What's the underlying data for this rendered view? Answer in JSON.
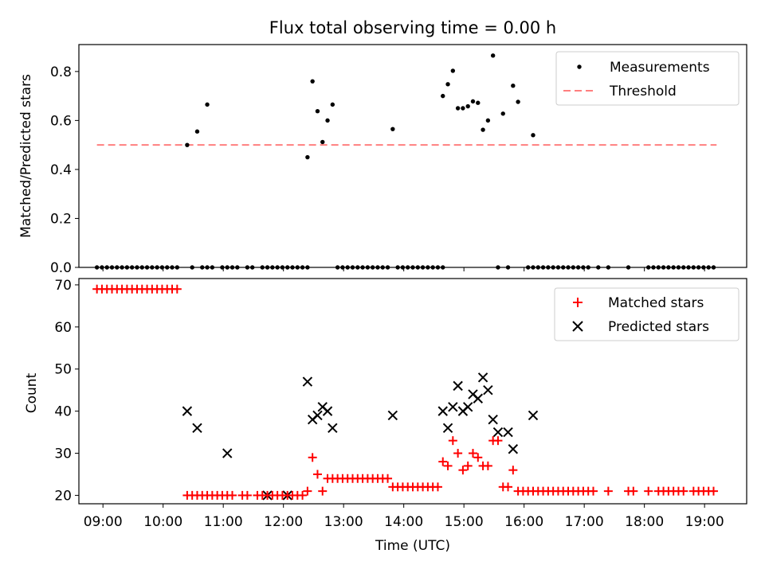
{
  "title": "Flux total observing time = 0.00 h",
  "chart_data": [
    {
      "type": "scatter",
      "ylabel": "Matched/Predicted stars",
      "xlim": [
        "08:36",
        "19:42"
      ],
      "ylim": [
        0,
        0.91
      ],
      "yticks": [
        0.0,
        0.2,
        0.4,
        0.6,
        0.8
      ],
      "ytick_labels": [
        "0.0",
        "0.2",
        "0.4",
        "0.6",
        "0.8"
      ],
      "legend_position": "top-right",
      "legend": [
        {
          "label": "Measurements",
          "marker": "dot",
          "color": "#000000"
        },
        {
          "label": "Threshold",
          "marker": "dashed-line",
          "color": "#ff7f7f"
        }
      ],
      "threshold": {
        "name": "Threshold",
        "value": 0.5,
        "x_range": [
          "08:54",
          "19:12"
        ],
        "color": "#ff7f7f"
      },
      "series": [
        {
          "name": "Measurements",
          "color": "#000000",
          "points": [
            [
              "08:54",
              0
            ],
            [
              "08:59",
              0
            ],
            [
              "09:04",
              0
            ],
            [
              "09:09",
              0
            ],
            [
              "09:14",
              0
            ],
            [
              "09:19",
              0
            ],
            [
              "09:24",
              0
            ],
            [
              "09:29",
              0
            ],
            [
              "09:34",
              0
            ],
            [
              "09:39",
              0
            ],
            [
              "09:44",
              0
            ],
            [
              "09:49",
              0
            ],
            [
              "09:54",
              0
            ],
            [
              "09:59",
              0
            ],
            [
              "10:04",
              0
            ],
            [
              "10:09",
              0
            ],
            [
              "10:14",
              0
            ],
            [
              "10:24",
              0.5
            ],
            [
              "10:34",
              0.555
            ],
            [
              "10:29",
              0
            ],
            [
              "10:39",
              0
            ],
            [
              "10:44",
              0
            ],
            [
              "10:49",
              0
            ],
            [
              "10:59",
              0
            ],
            [
              "11:04",
              0
            ],
            [
              "11:09",
              0
            ],
            [
              "11:14",
              0
            ],
            [
              "11:24",
              0
            ],
            [
              "11:29",
              0
            ],
            [
              "11:39",
              0
            ],
            [
              "11:44",
              0
            ],
            [
              "11:49",
              0
            ],
            [
              "11:54",
              0
            ],
            [
              "11:59",
              0
            ],
            [
              "12:04",
              0
            ],
            [
              "12:09",
              0
            ],
            [
              "12:14",
              0
            ],
            [
              "12:19",
              0
            ],
            [
              "12:24",
              0
            ],
            [
              "10:44",
              0.665
            ],
            [
              "12:24",
              0.45
            ],
            [
              "12:29",
              0.76
            ],
            [
              "12:34",
              0.638
            ],
            [
              "12:39",
              0.512
            ],
            [
              "12:44",
              0.6
            ],
            [
              "12:49",
              0.665
            ],
            [
              "12:54",
              0
            ],
            [
              "12:59",
              0
            ],
            [
              "13:04",
              0
            ],
            [
              "13:09",
              0
            ],
            [
              "13:14",
              0
            ],
            [
              "13:19",
              0
            ],
            [
              "13:24",
              0
            ],
            [
              "13:29",
              0
            ],
            [
              "13:34",
              0
            ],
            [
              "13:39",
              0
            ],
            [
              "13:44",
              0
            ],
            [
              "13:54",
              0
            ],
            [
              "13:59",
              0
            ],
            [
              "14:04",
              0
            ],
            [
              "14:09",
              0
            ],
            [
              "14:14",
              0
            ],
            [
              "14:19",
              0
            ],
            [
              "14:24",
              0
            ],
            [
              "14:29",
              0
            ],
            [
              "14:34",
              0
            ],
            [
              "14:39",
              0
            ],
            [
              "13:49",
              0.565
            ],
            [
              "14:39",
              0.7
            ],
            [
              "14:44",
              0.748
            ],
            [
              "14:49",
              0.803
            ],
            [
              "14:54",
              0.65
            ],
            [
              "14:59",
              0.65
            ],
            [
              "15:04",
              0.658
            ],
            [
              "15:09",
              0.678
            ],
            [
              "15:14",
              0.672
            ],
            [
              "15:19",
              0.562
            ],
            [
              "15:24",
              0.6
            ],
            [
              "15:29",
              0.865
            ],
            [
              "15:39",
              0.628
            ],
            [
              "15:49",
              0.742
            ],
            [
              "15:54",
              0.676
            ],
            [
              "16:09",
              0.54
            ],
            [
              "15:34",
              0
            ],
            [
              "15:44",
              0
            ],
            [
              "16:04",
              0
            ],
            [
              "16:09",
              0
            ],
            [
              "16:14",
              0
            ],
            [
              "16:19",
              0
            ],
            [
              "16:24",
              0
            ],
            [
              "16:29",
              0
            ],
            [
              "16:34",
              0
            ],
            [
              "16:39",
              0
            ],
            [
              "16:44",
              0
            ],
            [
              "16:49",
              0
            ],
            [
              "16:54",
              0
            ],
            [
              "16:59",
              0
            ],
            [
              "17:04",
              0
            ],
            [
              "17:14",
              0
            ],
            [
              "17:24",
              0
            ],
            [
              "17:44",
              0
            ],
            [
              "18:04",
              0
            ],
            [
              "18:09",
              0
            ],
            [
              "18:14",
              0
            ],
            [
              "18:19",
              0
            ],
            [
              "18:24",
              0
            ],
            [
              "18:29",
              0
            ],
            [
              "18:34",
              0
            ],
            [
              "18:39",
              0
            ],
            [
              "18:44",
              0
            ],
            [
              "18:49",
              0
            ],
            [
              "18:54",
              0
            ],
            [
              "18:59",
              0
            ],
            [
              "19:04",
              0
            ],
            [
              "19:09",
              0
            ]
          ]
        }
      ]
    },
    {
      "type": "scatter",
      "xlabel": "Time (UTC)",
      "ylabel": "Count",
      "xlim": [
        "08:36",
        "19:42"
      ],
      "ylim": [
        18,
        71.5
      ],
      "xticks": [
        "09:00",
        "10:00",
        "11:00",
        "12:00",
        "13:00",
        "14:00",
        "15:00",
        "16:00",
        "17:00",
        "18:00",
        "19:00"
      ],
      "yticks": [
        20,
        30,
        40,
        50,
        60,
        70
      ],
      "ytick_labels": [
        "20",
        "30",
        "40",
        "50",
        "60",
        "70"
      ],
      "legend_position": "top-right",
      "legend": [
        {
          "label": "Matched stars",
          "marker": "plus",
          "color": "#ff0000"
        },
        {
          "label": "Predicted stars",
          "marker": "x",
          "color": "#000000"
        }
      ],
      "series": [
        {
          "name": "Matched stars",
          "color": "#ff0000",
          "points": [
            [
              "08:54",
              69
            ],
            [
              "08:59",
              69
            ],
            [
              "09:04",
              69
            ],
            [
              "09:09",
              69
            ],
            [
              "09:14",
              69
            ],
            [
              "09:19",
              69
            ],
            [
              "09:24",
              69
            ],
            [
              "09:29",
              69
            ],
            [
              "09:34",
              69
            ],
            [
              "09:39",
              69
            ],
            [
              "09:44",
              69
            ],
            [
              "09:49",
              69
            ],
            [
              "09:54",
              69
            ],
            [
              "09:59",
              69
            ],
            [
              "10:04",
              69
            ],
            [
              "10:09",
              69
            ],
            [
              "10:14",
              69
            ],
            [
              "10:24",
              20
            ],
            [
              "10:29",
              20
            ],
            [
              "10:34",
              20
            ],
            [
              "10:39",
              20
            ],
            [
              "10:44",
              20
            ],
            [
              "10:49",
              20
            ],
            [
              "10:54",
              20
            ],
            [
              "10:59",
              20
            ],
            [
              "11:04",
              20
            ],
            [
              "11:09",
              20
            ],
            [
              "11:19",
              20
            ],
            [
              "11:24",
              20
            ],
            [
              "11:34",
              20
            ],
            [
              "11:39",
              20
            ],
            [
              "11:44",
              20
            ],
            [
              "11:49",
              20
            ],
            [
              "11:54",
              20
            ],
            [
              "11:59",
              20
            ],
            [
              "12:04",
              20
            ],
            [
              "12:09",
              20
            ],
            [
              "12:14",
              20
            ],
            [
              "12:19",
              20
            ],
            [
              "12:24",
              21
            ],
            [
              "12:29",
              29
            ],
            [
              "12:34",
              25
            ],
            [
              "12:39",
              21
            ],
            [
              "12:44",
              24
            ],
            [
              "12:49",
              24
            ],
            [
              "12:54",
              24
            ],
            [
              "12:59",
              24
            ],
            [
              "13:04",
              24
            ],
            [
              "13:09",
              24
            ],
            [
              "13:14",
              24
            ],
            [
              "13:19",
              24
            ],
            [
              "13:24",
              24
            ],
            [
              "13:29",
              24
            ],
            [
              "13:34",
              24
            ],
            [
              "13:39",
              24
            ],
            [
              "13:44",
              24
            ],
            [
              "13:49",
              22
            ],
            [
              "13:54",
              22
            ],
            [
              "13:59",
              22
            ],
            [
              "14:04",
              22
            ],
            [
              "14:09",
              22
            ],
            [
              "14:14",
              22
            ],
            [
              "14:19",
              22
            ],
            [
              "14:24",
              22
            ],
            [
              "14:29",
              22
            ],
            [
              "14:34",
              22
            ],
            [
              "14:39",
              28
            ],
            [
              "14:44",
              27
            ],
            [
              "14:49",
              33
            ],
            [
              "14:54",
              30
            ],
            [
              "14:59",
              26
            ],
            [
              "15:04",
              27
            ],
            [
              "15:09",
              30
            ],
            [
              "15:14",
              29
            ],
            [
              "15:19",
              27
            ],
            [
              "15:24",
              27
            ],
            [
              "15:29",
              33
            ],
            [
              "15:34",
              33
            ],
            [
              "15:39",
              22
            ],
            [
              "15:44",
              22
            ],
            [
              "15:49",
              26
            ],
            [
              "15:54",
              21
            ],
            [
              "15:59",
              21
            ],
            [
              "16:04",
              21
            ],
            [
              "16:09",
              21
            ],
            [
              "16:14",
              21
            ],
            [
              "16:19",
              21
            ],
            [
              "16:24",
              21
            ],
            [
              "16:29",
              21
            ],
            [
              "16:34",
              21
            ],
            [
              "16:39",
              21
            ],
            [
              "16:44",
              21
            ],
            [
              "16:49",
              21
            ],
            [
              "16:54",
              21
            ],
            [
              "16:59",
              21
            ],
            [
              "17:04",
              21
            ],
            [
              "17:09",
              21
            ],
            [
              "17:24",
              21
            ],
            [
              "17:44",
              21
            ],
            [
              "17:49",
              21
            ],
            [
              "18:04",
              21
            ],
            [
              "18:14",
              21
            ],
            [
              "18:19",
              21
            ],
            [
              "18:24",
              21
            ],
            [
              "18:29",
              21
            ],
            [
              "18:34",
              21
            ],
            [
              "18:39",
              21
            ],
            [
              "18:49",
              21
            ],
            [
              "18:54",
              21
            ],
            [
              "18:59",
              21
            ],
            [
              "19:04",
              21
            ],
            [
              "19:09",
              21
            ]
          ]
        },
        {
          "name": "Predicted stars",
          "color": "#000000",
          "points": [
            [
              "10:24",
              40
            ],
            [
              "10:34",
              36
            ],
            [
              "11:04",
              30
            ],
            [
              "11:44",
              20
            ],
            [
              "12:04",
              20
            ],
            [
              "12:24",
              47
            ],
            [
              "12:29",
              38
            ],
            [
              "12:34",
              39
            ],
            [
              "12:39",
              41
            ],
            [
              "12:44",
              40
            ],
            [
              "12:49",
              36
            ],
            [
              "13:49",
              39
            ],
            [
              "14:39",
              40
            ],
            [
              "14:44",
              36
            ],
            [
              "14:49",
              41
            ],
            [
              "14:54",
              46
            ],
            [
              "14:59",
              40
            ],
            [
              "15:04",
              41
            ],
            [
              "15:09",
              44
            ],
            [
              "15:14",
              43
            ],
            [
              "15:19",
              48
            ],
            [
              "15:24",
              45
            ],
            [
              "15:29",
              38
            ],
            [
              "15:34",
              35
            ],
            [
              "15:44",
              35
            ],
            [
              "15:49",
              31
            ],
            [
              "16:09",
              39
            ]
          ]
        }
      ]
    }
  ]
}
